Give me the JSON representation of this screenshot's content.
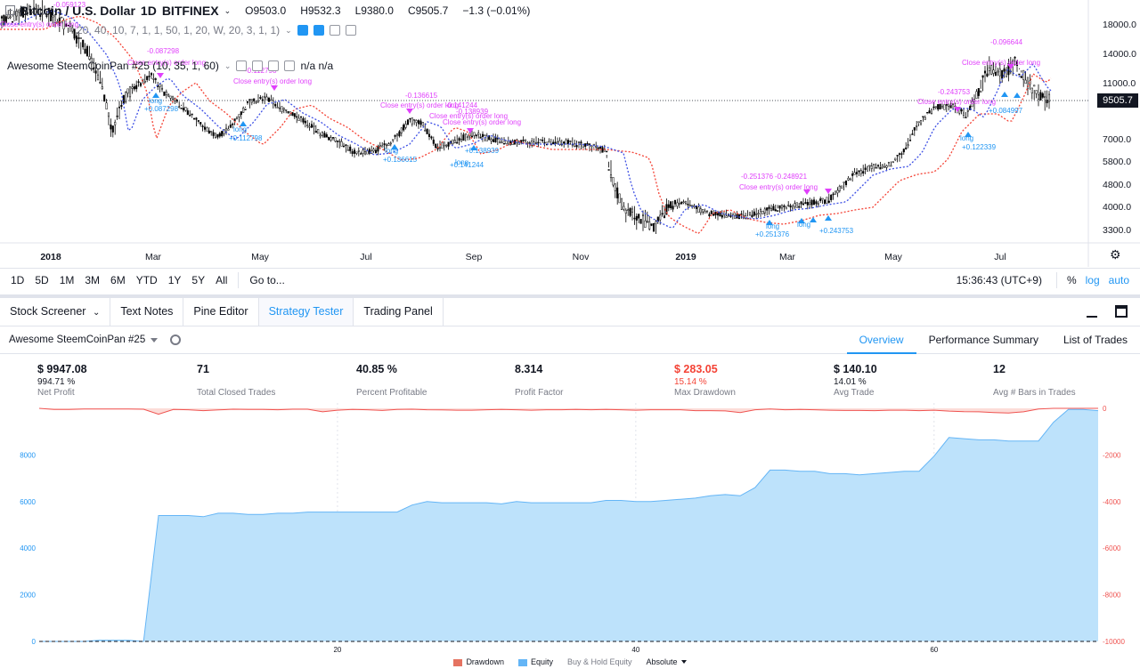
{
  "chart": {
    "symbol": "Bitcoin / U.S. Dollar",
    "interval": "1D",
    "exchange": "BITFINEX",
    "open": "O9503.0",
    "high": "H9532.3",
    "low": "L9380.0",
    "close": "C9505.7",
    "change": "−1.3 (−0.01%)",
    "indicator1_params": "20, 40, 10, 7, 1, 1, 50, 1, 20, W, 20, 3, 1, 1)",
    "indicator2_name": "Awesome SteemCoinPan #25 (10, 35, 1, 60)",
    "indicator2_values": "n/a  n/a",
    "price_label": "9505.7",
    "price_axis": [
      "18000.0",
      "14000.0",
      "11000.0",
      "7000.0",
      "5800.0",
      "4800.0",
      "4000.0",
      "3300.0"
    ],
    "time_axis": [
      "2018",
      "Mar",
      "May",
      "Jul",
      "Sep",
      "Nov",
      "2019",
      "Mar",
      "May",
      "Jul"
    ],
    "signal_labels": [
      {
        "text": "Close entry(s) order long",
        "color": "#e040fb"
      },
      {
        "text": "-0.059123",
        "color": "#e040fb"
      },
      {
        "text": "-0.087298",
        "color": "#e040fb"
      },
      {
        "text": "Close entry(s) order long",
        "color": "#e040fb"
      },
      {
        "text": "-0.112798",
        "color": "#e040fb"
      },
      {
        "text": "Close entry(s) order long",
        "color": "#e040fb"
      },
      {
        "text": "-0.136615",
        "color": "#e040fb"
      },
      {
        "text": "Close entry(s) order long",
        "color": "#e040fb"
      },
      {
        "text": "-0.141244",
        "color": "#e040fb"
      },
      {
        "text": "Close entry(s) order long",
        "color": "#e040fb"
      },
      {
        "text": "-0.138939",
        "color": "#e040fb"
      },
      {
        "text": "Close entry(s) order long",
        "color": "#e040fb"
      },
      {
        "text": "-0.251376",
        "color": "#e040fb"
      },
      {
        "text": "-0.248921",
        "color": "#e040fb"
      },
      {
        "text": "Close entry(s) order long",
        "color": "#e040fb"
      },
      {
        "text": "-0.243753",
        "color": "#e040fb"
      },
      {
        "text": "Close entry(s) order long",
        "color": "#e040fb"
      },
      {
        "text": "-0.096644",
        "color": "#e040fb"
      },
      {
        "text": "Close entry(s) order long",
        "color": "#e040fb"
      },
      {
        "text": "long",
        "color": "#2196f3"
      },
      {
        "text": "+0.087298",
        "color": "#2196f3"
      },
      {
        "text": "long",
        "color": "#2196f3"
      },
      {
        "text": "+0.112798",
        "color": "#2196f3"
      },
      {
        "text": "long",
        "color": "#2196f3"
      },
      {
        "text": "+0.136615",
        "color": "#2196f3"
      },
      {
        "text": "long",
        "color": "#2196f3"
      },
      {
        "text": "+0.138939",
        "color": "#2196f3"
      },
      {
        "text": "+0.141244",
        "color": "#2196f3"
      },
      {
        "text": "long",
        "color": "#2196f3"
      },
      {
        "text": "+0.251376",
        "color": "#2196f3"
      },
      {
        "text": "long",
        "color": "#2196f3"
      },
      {
        "text": "+0.243753",
        "color": "#2196f3"
      },
      {
        "text": "long",
        "color": "#2196f3"
      },
      {
        "text": "+0.122339",
        "color": "#2196f3"
      },
      {
        "text": "+0.084997",
        "color": "#2196f3"
      }
    ]
  },
  "toolbar": {
    "timeframes": [
      "1D",
      "5D",
      "1M",
      "3M",
      "6M",
      "YTD",
      "1Y",
      "5Y",
      "All"
    ],
    "goto": "Go to...",
    "clock": "15:36:43 (UTC+9)",
    "percent": "%",
    "log": "log",
    "auto": "auto"
  },
  "panel": {
    "tabs": [
      "Stock Screener",
      "Text Notes",
      "Pine Editor",
      "Strategy Tester",
      "Trading Panel"
    ],
    "active_tab": "Strategy Tester"
  },
  "strategy": {
    "name": "Awesome SteemCoinPan #25",
    "tabs": [
      "Overview",
      "Performance Summary",
      "List of Trades"
    ],
    "active_tab": "Overview"
  },
  "stats": [
    {
      "value": "$ 9947.08",
      "sub": "994.71 %",
      "label": "Net Profit",
      "negative": false
    },
    {
      "value": "71",
      "sub": "",
      "label": "Total Closed Trades",
      "negative": false
    },
    {
      "value": "40.85 %",
      "sub": "",
      "label": "Percent Profitable",
      "negative": false
    },
    {
      "value": "8.314",
      "sub": "",
      "label": "Profit Factor",
      "negative": false
    },
    {
      "value": "$ 283.05",
      "sub": "15.14 %",
      "label": "Max Drawdown",
      "negative": true
    },
    {
      "value": "$ 140.10",
      "sub": "14.01 %",
      "label": "Avg Trade",
      "negative": false
    },
    {
      "value": "12",
      "sub": "",
      "label": "Avg # Bars in Trades",
      "negative": false
    }
  ],
  "equity_chart": {
    "left_axis": [
      "8000",
      "6000",
      "4000",
      "2000",
      "0"
    ],
    "right_axis": [
      "0",
      "-2000",
      "-4000",
      "-6000",
      "-8000",
      "-10000"
    ],
    "x_axis": [
      "20",
      "40",
      "60"
    ],
    "legend": {
      "drawdown": "Drawdown",
      "equity": "Equity",
      "buyhold": "Buy & Hold Equity",
      "mode": "Absolute"
    },
    "colors": {
      "equity_fill": "#bde2fb",
      "equity_line": "#64b5f6",
      "drawdown": "#ef5350",
      "drawdown_fill": "#fcdcd8"
    }
  },
  "chart_data": {
    "type": "area",
    "x": [
      0,
      1,
      2,
      3,
      4,
      5,
      6,
      7,
      8,
      9,
      10,
      11,
      12,
      13,
      14,
      15,
      16,
      17,
      18,
      19,
      20,
      21,
      22,
      23,
      24,
      25,
      26,
      27,
      28,
      29,
      30,
      31,
      32,
      33,
      34,
      35,
      36,
      37,
      38,
      39,
      40,
      41,
      42,
      43,
      44,
      45,
      46,
      47,
      48,
      49,
      50,
      51,
      52,
      53,
      54,
      55,
      56,
      57,
      58,
      59,
      60,
      61,
      62,
      63,
      64,
      65,
      66,
      67,
      68,
      69,
      70,
      71
    ],
    "series": [
      {
        "name": "Equity",
        "values": [
          0,
          0,
          0,
          0,
          50,
          50,
          50,
          0,
          5400,
          5400,
          5400,
          5350,
          5500,
          5500,
          5450,
          5450,
          5500,
          5500,
          5550,
          5550,
          5550,
          5550,
          5550,
          5550,
          5550,
          5850,
          6000,
          5950,
          5950,
          5950,
          5950,
          5900,
          6000,
          5950,
          5950,
          5950,
          5950,
          5950,
          6050,
          6050,
          6000,
          6000,
          6050,
          6100,
          6150,
          6250,
          6300,
          6250,
          6600,
          7350,
          7350,
          7300,
          7300,
          7200,
          7200,
          7150,
          7200,
          7250,
          7300,
          7300,
          7950,
          8750,
          8700,
          8650,
          8650,
          8600,
          8600,
          8600,
          9400,
          9950,
          9950,
          9900
        ]
      },
      {
        "name": "Drawdown",
        "values": [
          0,
          -50,
          -50,
          -30,
          -30,
          -30,
          -30,
          -40,
          -250,
          -50,
          -60,
          -100,
          -70,
          -40,
          -50,
          -50,
          -60,
          -40,
          -40,
          -150,
          -80,
          -50,
          -60,
          -90,
          -50,
          -40,
          -60,
          -70,
          -80,
          -80,
          -60,
          -50,
          -60,
          -80,
          -60,
          -60,
          -50,
          -60,
          -50,
          -60,
          -80,
          -60,
          -60,
          -60,
          -100,
          -100,
          -110,
          -180,
          -60,
          -30,
          -60,
          -50,
          -60,
          -80,
          -90,
          -90,
          -100,
          -80,
          -80,
          -100,
          -80,
          -120,
          -140,
          -150,
          -180,
          -200,
          -150,
          -30,
          0,
          0,
          0,
          0
        ]
      }
    ],
    "left_ylim": [
      0,
      10000
    ],
    "right_ylim": [
      -10000,
      0
    ],
    "xlim": [
      0,
      71
    ]
  }
}
